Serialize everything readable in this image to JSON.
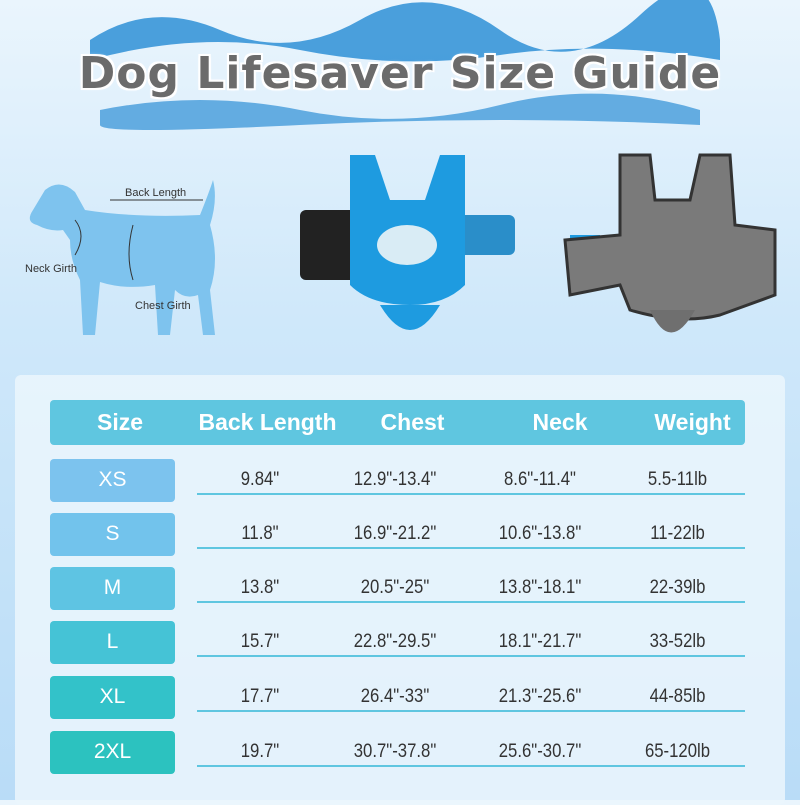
{
  "title": "Dog Lifesaver Size Guide",
  "diagram_labels": {
    "back_length": "Back Length",
    "neck_girth": "Neck Girth",
    "chest_girth": "Chest Girth"
  },
  "table": {
    "headers": [
      "Size",
      "Back Length",
      "Chest",
      "Neck",
      "Weight"
    ],
    "rows": [
      {
        "size": "XS",
        "back": "9.84\"",
        "chest": "12.9\"-13.4\"",
        "neck": "8.6\"-11.4\"",
        "weight": "5.5-11lb",
        "color": "#7cc3ee"
      },
      {
        "size": "S",
        "back": "11.8\"",
        "chest": "16.9\"-21.2\"",
        "neck": "10.6\"-13.8\"",
        "weight": "11-22lb",
        "color": "#72c3ec"
      },
      {
        "size": "M",
        "back": "13.8\"",
        "chest": "20.5\"-25\"",
        "neck": "13.8\"-18.1\"",
        "weight": "22-39lb",
        "color": "#5ec4e3"
      },
      {
        "size": "L",
        "back": "15.7\"",
        "chest": "22.8\"-29.5\"",
        "neck": "18.1\"-21.7\"",
        "weight": "33-52lb",
        "color": "#45c3d6"
      },
      {
        "size": "XL",
        "back": "17.7\"",
        "chest": "26.4\"-33\"",
        "neck": "21.3\"-25.6\"",
        "weight": "44-85lb",
        "color": "#33c2c9"
      },
      {
        "size": "2XL",
        "back": "19.7\"",
        "chest": "30.7\"-37.8\"",
        "neck": "25.6\"-30.7\"",
        "weight": "65-120lb",
        "color": "#2cc2bf"
      }
    ]
  }
}
